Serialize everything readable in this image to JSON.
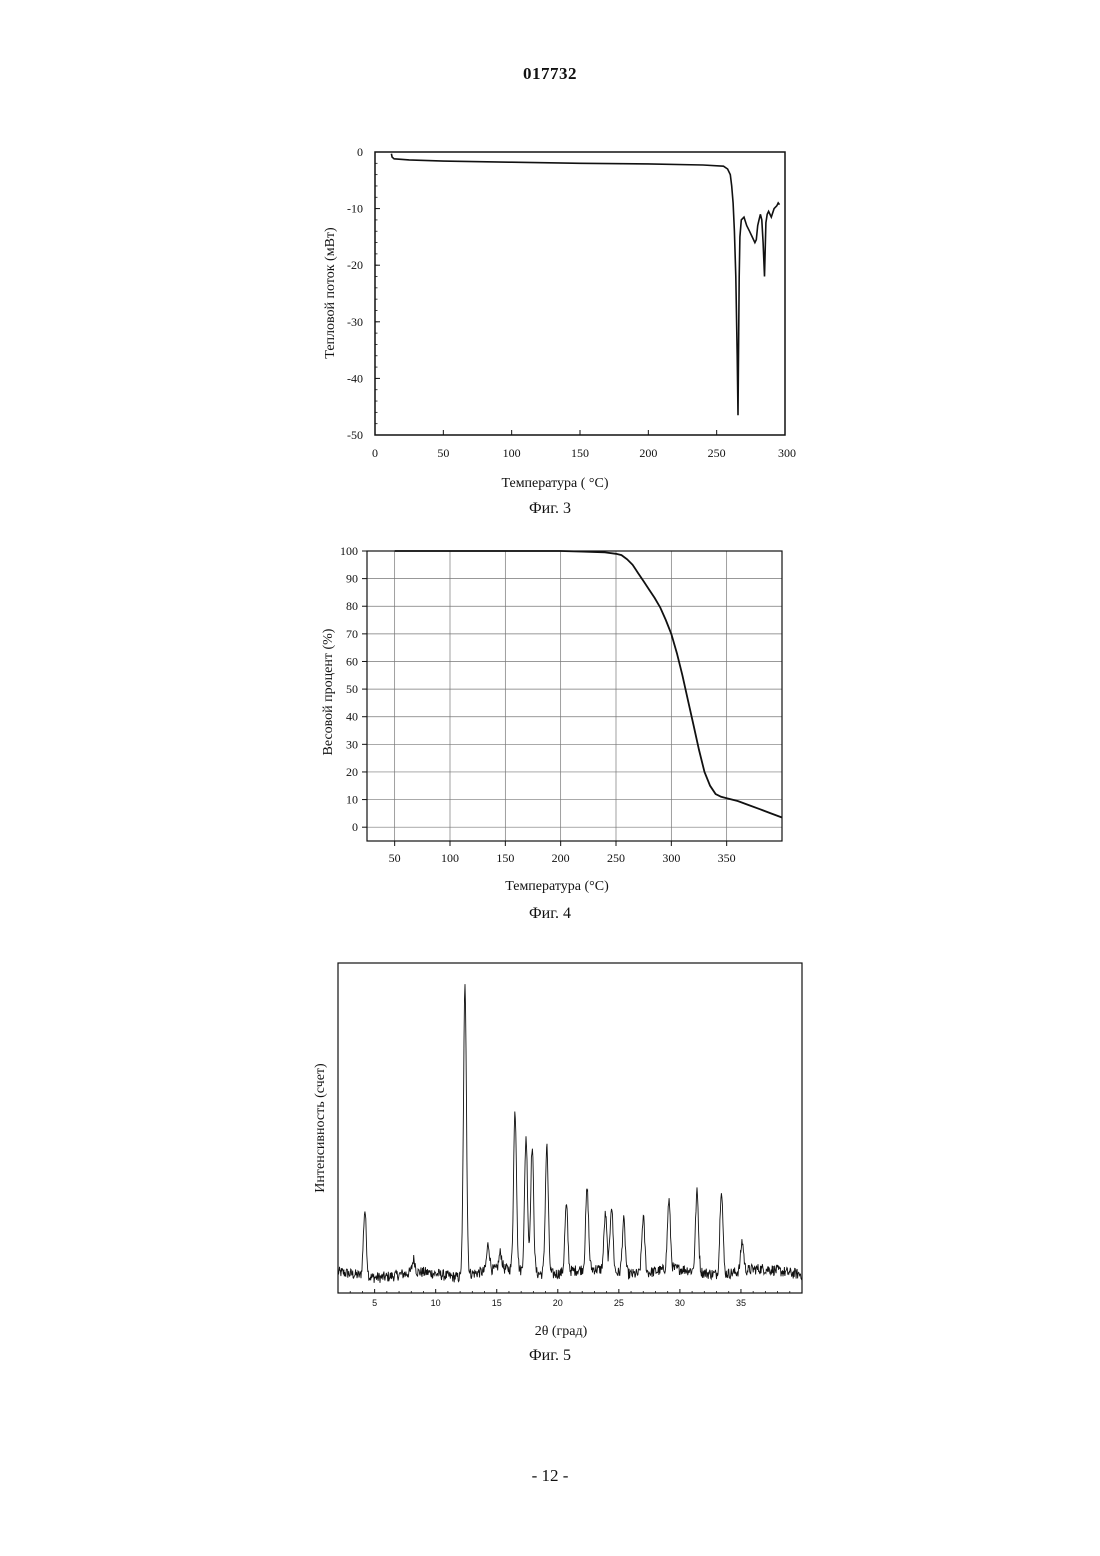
{
  "header": {
    "doc_number": "017732"
  },
  "footer": {
    "page_number": "- 12 -"
  },
  "chart_data": [
    {
      "type": "line",
      "caption": "Фиг. 3",
      "xlabel": "Температура ( °С)",
      "ylabel": "Тепловой поток (мВт)",
      "xlim": [
        0,
        300
      ],
      "ylim": [
        -50,
        0
      ],
      "xticks": [
        0,
        50,
        100,
        150,
        200,
        250,
        300
      ],
      "yticks": [
        0,
        -10,
        -20,
        -30,
        -40,
        -50
      ],
      "grid": false,
      "series": [
        {
          "x": [
            12,
            12.5,
            14,
            25,
            50,
            100,
            150,
            200,
            240,
            255,
            258,
            260,
            261,
            262,
            263,
            264,
            265,
            265.6,
            266,
            266.5,
            267,
            268,
            270,
            272,
            274,
            276,
            278,
            279,
            280,
            281,
            282,
            283,
            284,
            285,
            286,
            287,
            288,
            290,
            292,
            294,
            295,
            296
          ],
          "y": [
            -0.3,
            -0.9,
            -1.2,
            -1.4,
            -1.6,
            -1.8,
            -2.0,
            -2.1,
            -2.3,
            -2.5,
            -3.0,
            -4.0,
            -6.0,
            -9.0,
            -14.0,
            -22.0,
            -36.0,
            -46.5,
            -36.0,
            -22.0,
            -15.0,
            -12.0,
            -11.5,
            -13.0,
            -14.0,
            -15.0,
            -16.0,
            -15.5,
            -13.0,
            -12.0,
            -11.0,
            -12.0,
            -16.0,
            -22.0,
            -12.5,
            -11.0,
            -10.5,
            -11.5,
            -10.0,
            -9.5,
            -9.0,
            -9.3
          ]
        }
      ]
    },
    {
      "type": "line",
      "caption": "Фиг. 4",
      "xlabel": "Температура (°С)",
      "ylabel": "Весовой процент (%)",
      "xlim": [
        25,
        400
      ],
      "ylim": [
        -5,
        100
      ],
      "xticks": [
        50,
        100,
        150,
        200,
        250,
        300,
        350
      ],
      "yticks": [
        0,
        10,
        20,
        30,
        40,
        50,
        60,
        70,
        80,
        90,
        100
      ],
      "grid": true,
      "series": [
        {
          "x": [
            50,
            100,
            150,
            200,
            220,
            240,
            250,
            255,
            260,
            265,
            270,
            275,
            280,
            285,
            290,
            295,
            300,
            305,
            310,
            315,
            320,
            325,
            330,
            335,
            340,
            345,
            350,
            360,
            370,
            380,
            390,
            400
          ],
          "y": [
            100,
            100,
            100,
            100,
            99.8,
            99.5,
            99,
            98.5,
            97,
            95,
            92,
            89,
            86,
            83,
            79.5,
            75,
            70,
            63,
            55,
            46,
            37,
            28,
            20,
            15,
            12,
            11,
            10.5,
            9.5,
            8,
            6.5,
            5,
            3.5
          ]
        }
      ]
    },
    {
      "type": "line",
      "caption": "Фиг. 5",
      "xlabel": "2θ (град)",
      "ylabel": "Интенсивность (счет)",
      "xlim": [
        2,
        40
      ],
      "xticks": [
        5,
        10,
        15,
        20,
        25,
        30,
        35
      ],
      "ylim": [
        0,
        1000
      ],
      "grid": false,
      "peaks": [
        {
          "x": 4.2,
          "y": 260
        },
        {
          "x": 8.2,
          "y": 100
        },
        {
          "x": 12.4,
          "y": 930
        },
        {
          "x": 14.3,
          "y": 140
        },
        {
          "x": 15.3,
          "y": 110
        },
        {
          "x": 16.5,
          "y": 540
        },
        {
          "x": 17.4,
          "y": 470
        },
        {
          "x": 17.9,
          "y": 440
        },
        {
          "x": 19.1,
          "y": 450
        },
        {
          "x": 20.7,
          "y": 260
        },
        {
          "x": 22.4,
          "y": 300
        },
        {
          "x": 23.9,
          "y": 230
        },
        {
          "x": 24.4,
          "y": 260
        },
        {
          "x": 25.4,
          "y": 220
        },
        {
          "x": 27.0,
          "y": 230
        },
        {
          "x": 29.1,
          "y": 270
        },
        {
          "x": 31.4,
          "y": 300
        },
        {
          "x": 33.4,
          "y": 320
        },
        {
          "x": 35.1,
          "y": 150
        }
      ]
    }
  ]
}
